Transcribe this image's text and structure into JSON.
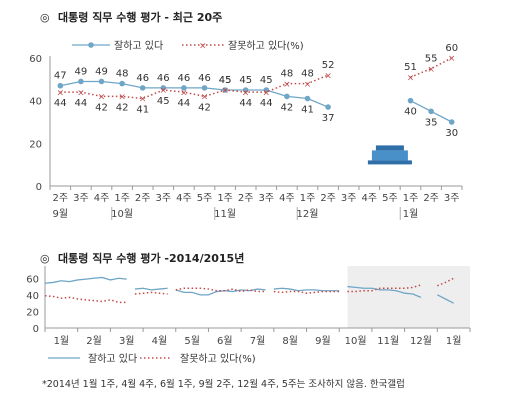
{
  "colors": {
    "approve": "#6fa6c7",
    "disapprove": "#c04a4a",
    "axis": "#999999",
    "shade": "#eeeeee",
    "icon": "#4a90c8"
  },
  "chart_data": [
    {
      "type": "line",
      "title": "대통령 직무 수행 평가 - 최근 20주",
      "title_mark": "◎",
      "ylim": [
        0,
        60
      ],
      "yticks": [
        "0",
        "20",
        "40",
        "60"
      ],
      "categories": [
        "2주",
        "3주",
        "4주",
        "1주",
        "2주",
        "3주",
        "4주",
        "5주",
        "1주",
        "2주",
        "3주",
        "4주",
        "1주",
        "2주",
        "3주",
        "4주",
        "5주",
        "1주",
        "2주",
        "3주"
      ],
      "month_labels": [
        {
          "index": 0,
          "label": "9월"
        },
        {
          "index": 3,
          "label": "10월"
        },
        {
          "index": 8,
          "label": "11월"
        },
        {
          "index": 12,
          "label": "12월"
        },
        {
          "index": 17,
          "label": "1월"
        }
      ],
      "gap_index": 16,
      "gap_icon": "blue-house-icon",
      "series": [
        {
          "name": "잘하고 있다",
          "values": [
            47,
            49,
            49,
            48,
            46,
            46,
            46,
            46,
            45,
            45,
            45,
            42,
            41,
            37,
            null,
            null,
            null,
            40,
            35,
            30
          ]
        },
        {
          "name": "잘못하고 있다(%)",
          "values": [
            44,
            44,
            42,
            42,
            41,
            45,
            44,
            42,
            45,
            44,
            44,
            48,
            48,
            52,
            null,
            null,
            null,
            51,
            55,
            60
          ]
        }
      ]
    },
    {
      "type": "line",
      "title": "대통령 직무 수행 평가 -2014/2015년",
      "title_mark": "◎",
      "ylim": [
        0,
        70
      ],
      "yticks": [
        "0",
        "20",
        "40",
        "60"
      ],
      "xlabels": [
        "1월",
        "2월",
        "3월",
        "4월",
        "5월",
        "6월",
        "7월",
        "8월",
        "9월",
        "10월",
        "11월",
        "12월",
        "1월"
      ],
      "shaded_from_month": 9.5,
      "series": [
        {
          "name": "잘하고 있다",
          "segments": [
            [
              [
                0,
                54
              ],
              [
                0.5,
                55
              ],
              [
                1,
                57
              ],
              [
                1.5,
                56
              ],
              [
                2,
                58
              ],
              [
                2.5,
                59
              ],
              [
                3,
                60
              ],
              [
                3.5,
                61
              ],
              [
                4,
                58
              ],
              [
                4.5,
                60
              ],
              [
                5,
                59
              ]
            ],
            [
              [
                5.5,
                47
              ],
              [
                6,
                48
              ],
              [
                6.5,
                46
              ],
              [
                7,
                47
              ],
              [
                7.5,
                48
              ]
            ],
            [
              [
                8,
                46
              ],
              [
                8.5,
                43
              ],
              [
                9,
                43
              ],
              [
                9.5,
                40
              ],
              [
                10,
                40
              ],
              [
                10.5,
                44
              ],
              [
                11,
                45
              ],
              [
                11.5,
                44
              ],
              [
                12,
                46
              ],
              [
                12.5,
                45
              ],
              [
                13,
                47
              ],
              [
                13.5,
                46
              ]
            ],
            [
              [
                14,
                47
              ],
              [
                14.5,
                48
              ],
              [
                15,
                47
              ],
              [
                15.5,
                45
              ],
              [
                16,
                46
              ],
              [
                16.5,
                46
              ],
              [
                17,
                45
              ],
              [
                17.5,
                45
              ],
              [
                18,
                45
              ]
            ],
            [
              [
                18.5,
                50
              ],
              [
                19,
                49
              ],
              [
                19.5,
                48
              ],
              [
                20,
                48
              ],
              [
                20.5,
                46
              ],
              [
                21,
                46
              ],
              [
                21.5,
                45
              ],
              [
                22,
                42
              ],
              [
                22.5,
                41
              ],
              [
                23,
                37
              ]
            ],
            [
              [
                24,
                40
              ],
              [
                24.5,
                35
              ],
              [
                25,
                30
              ]
            ]
          ]
        },
        {
          "name": "잘못하고 있다(%)",
          "segments": [
            [
              [
                0,
                39
              ],
              [
                0.5,
                38
              ],
              [
                1,
                36
              ],
              [
                1.5,
                37
              ],
              [
                2,
                35
              ],
              [
                2.5,
                34
              ],
              [
                3,
                33
              ],
              [
                3.5,
                32
              ],
              [
                4,
                34
              ],
              [
                4.5,
                31
              ],
              [
                5,
                31
              ]
            ],
            [
              [
                5.5,
                41
              ],
              [
                6,
                42
              ],
              [
                6.5,
                43
              ],
              [
                7,
                42
              ],
              [
                7.5,
                41
              ]
            ],
            [
              [
                8,
                46
              ],
              [
                8.5,
                48
              ],
              [
                9,
                48
              ],
              [
                9.5,
                48
              ],
              [
                10,
                47
              ],
              [
                10.5,
                45
              ],
              [
                11,
                45
              ],
              [
                11.5,
                47
              ],
              [
                12,
                44
              ],
              [
                12.5,
                46
              ],
              [
                13,
                44
              ],
              [
                13.5,
                44
              ]
            ],
            [
              [
                14,
                44
              ],
              [
                14.5,
                43
              ],
              [
                15,
                44
              ],
              [
                15.5,
                44
              ],
              [
                16,
                42
              ],
              [
                16.5,
                43
              ],
              [
                17,
                44
              ],
              [
                17.5,
                44
              ],
              [
                18,
                44
              ]
            ],
            [
              [
                18.5,
                44
              ],
              [
                19,
                44
              ],
              [
                19.5,
                45
              ],
              [
                20,
                45
              ],
              [
                20.5,
                48
              ],
              [
                21,
                48
              ],
              [
                21.5,
                48
              ],
              [
                22,
                48
              ],
              [
                22.5,
                49
              ],
              [
                23,
                52
              ]
            ],
            [
              [
                24,
                51
              ],
              [
                24.5,
                55
              ],
              [
                25,
                60
              ]
            ]
          ]
        }
      ]
    }
  ],
  "footnote": "*2014년 1월 1주, 4월 4주, 6월 1주, 9월 2주, 12월 4주, 5주는 조사하지 않음. 한국갤럽"
}
